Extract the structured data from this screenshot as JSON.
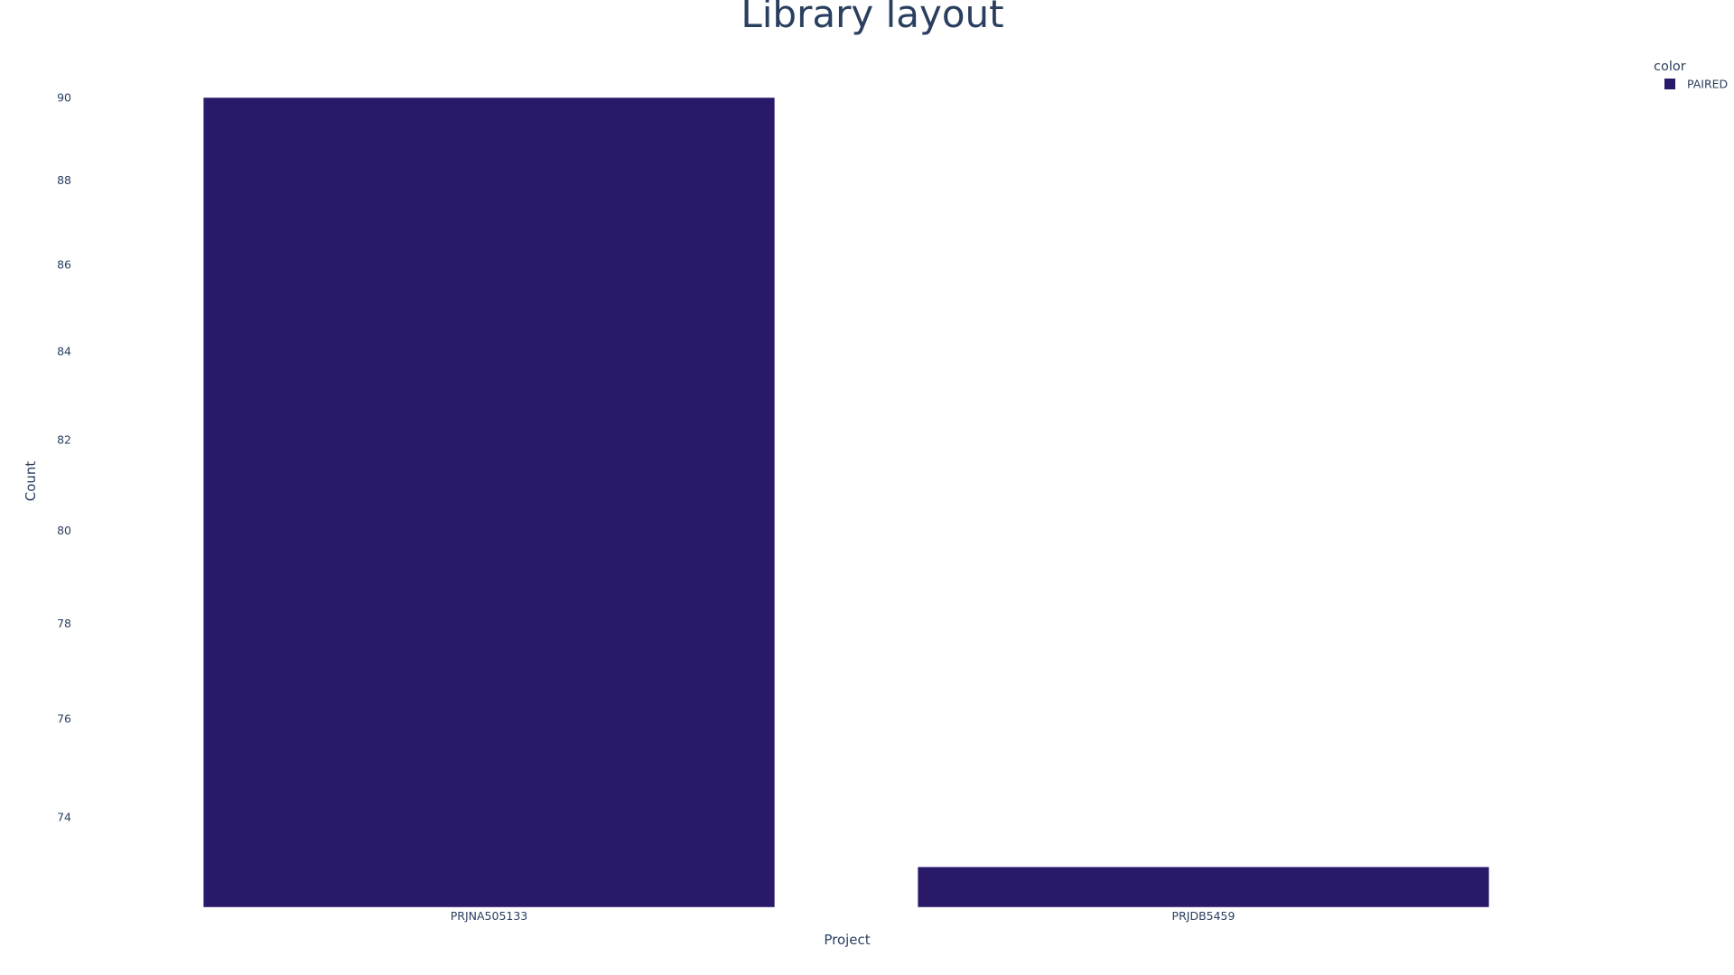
{
  "chart_data": {
    "type": "bar",
    "title": "Library layout",
    "xlabel": "Project",
    "ylabel": "Count",
    "categories": [
      "PRJNA505133",
      "PRJDB5459"
    ],
    "series": [
      {
        "name": "PAIRED",
        "values": [
          90,
          73
        ],
        "color": "#2a1869"
      }
    ],
    "ylim": [
      72.2,
      90
    ],
    "yticks": [
      74,
      76,
      78,
      80,
      82,
      84,
      86,
      88,
      90
    ],
    "log_y": true,
    "grid": false,
    "legend": {
      "title": "color",
      "placement": "top-right",
      "entries": [
        "PAIRED"
      ]
    }
  }
}
